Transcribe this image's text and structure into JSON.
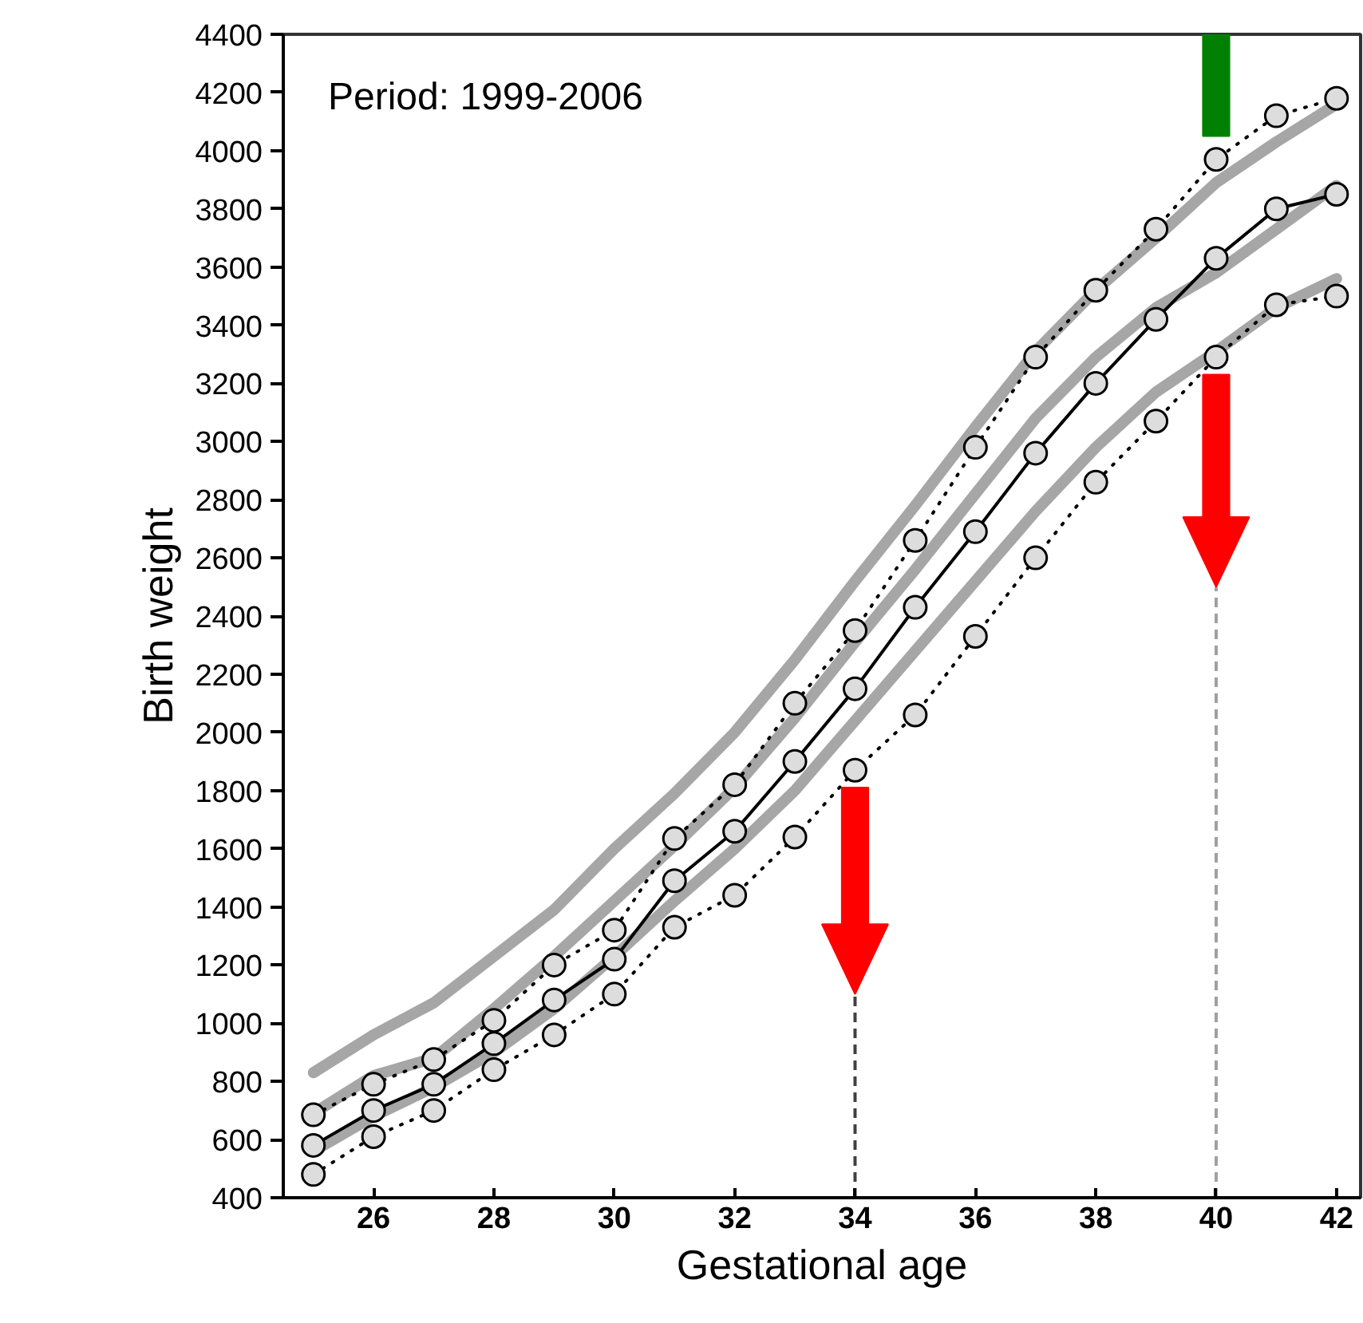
{
  "chart_data": {
    "type": "line",
    "xlabel": "Gestational age",
    "ylabel": "Birth weight",
    "annotations": [
      "Period: 1999-2006"
    ],
    "x": [
      25,
      26,
      27,
      28,
      29,
      30,
      31,
      32,
      33,
      34,
      35,
      36,
      37,
      38,
      39,
      40,
      41,
      42
    ],
    "series": [
      {
        "color": "#a6a6a6",
        "marker": "none",
        "line_style": "solid",
        "values": [
          830,
          960,
          1070,
          1230,
          1390,
          1600,
          1790,
          2000,
          2250,
          2520,
          2780,
          3050,
          3310,
          3520,
          3700,
          3890,
          4030,
          4160
        ]
      },
      {
        "color": "#a6a6a6",
        "marker": "none",
        "line_style": "solid",
        "values": [
          690,
          820,
          880,
          1050,
          1230,
          1420,
          1610,
          1810,
          2050,
          2310,
          2560,
          2820,
          3080,
          3290,
          3460,
          3580,
          3730,
          3880
        ]
      },
      {
        "color": "#a6a6a6",
        "marker": "none",
        "line_style": "solid",
        "values": [
          560,
          680,
          780,
          900,
          1050,
          1230,
          1420,
          1600,
          1800,
          2040,
          2280,
          2520,
          2760,
          2980,
          3170,
          3310,
          3460,
          3560
        ]
      },
      {
        "color": "#000000",
        "marker": "circle",
        "line_style": "dotted",
        "values": [
          685,
          790,
          875,
          1010,
          1200,
          1320,
          1635,
          1820,
          2100,
          2350,
          2660,
          2980,
          3290,
          3520,
          3730,
          3970,
          4120,
          4180
        ]
      },
      {
        "color": "#000000",
        "marker": "circle",
        "line_style": "solid",
        "values": [
          580,
          700,
          790,
          930,
          1080,
          1220,
          1490,
          1660,
          1900,
          2150,
          2430,
          2690,
          2960,
          3200,
          3420,
          3630,
          3800,
          3850
        ]
      },
      {
        "color": "#000000",
        "marker": "circle",
        "line_style": "dotted",
        "values": [
          480,
          610,
          700,
          840,
          960,
          1100,
          1330,
          1440,
          1640,
          1870,
          2060,
          2330,
          2600,
          2860,
          3070,
          3290,
          3470,
          3500
        ]
      }
    ],
    "ref_lines": [
      {
        "axis": "x",
        "value": 34,
        "color": "#404040",
        "line_style": "dashed"
      },
      {
        "axis": "x",
        "value": 40,
        "color": "#a0a0a0",
        "line_style": "dashed"
      }
    ],
    "xlim": [
      24.5,
      42.4
    ],
    "ylim": [
      400,
      4400
    ],
    "xticks": [
      26,
      28,
      30,
      32,
      34,
      36,
      38,
      40,
      42
    ],
    "yticks": [
      400,
      600,
      800,
      1000,
      1200,
      1400,
      1600,
      1800,
      2000,
      2200,
      2400,
      2600,
      2800,
      3000,
      3200,
      3400,
      3600,
      3800,
      4000,
      4200,
      4400
    ],
    "grid": false
  }
}
